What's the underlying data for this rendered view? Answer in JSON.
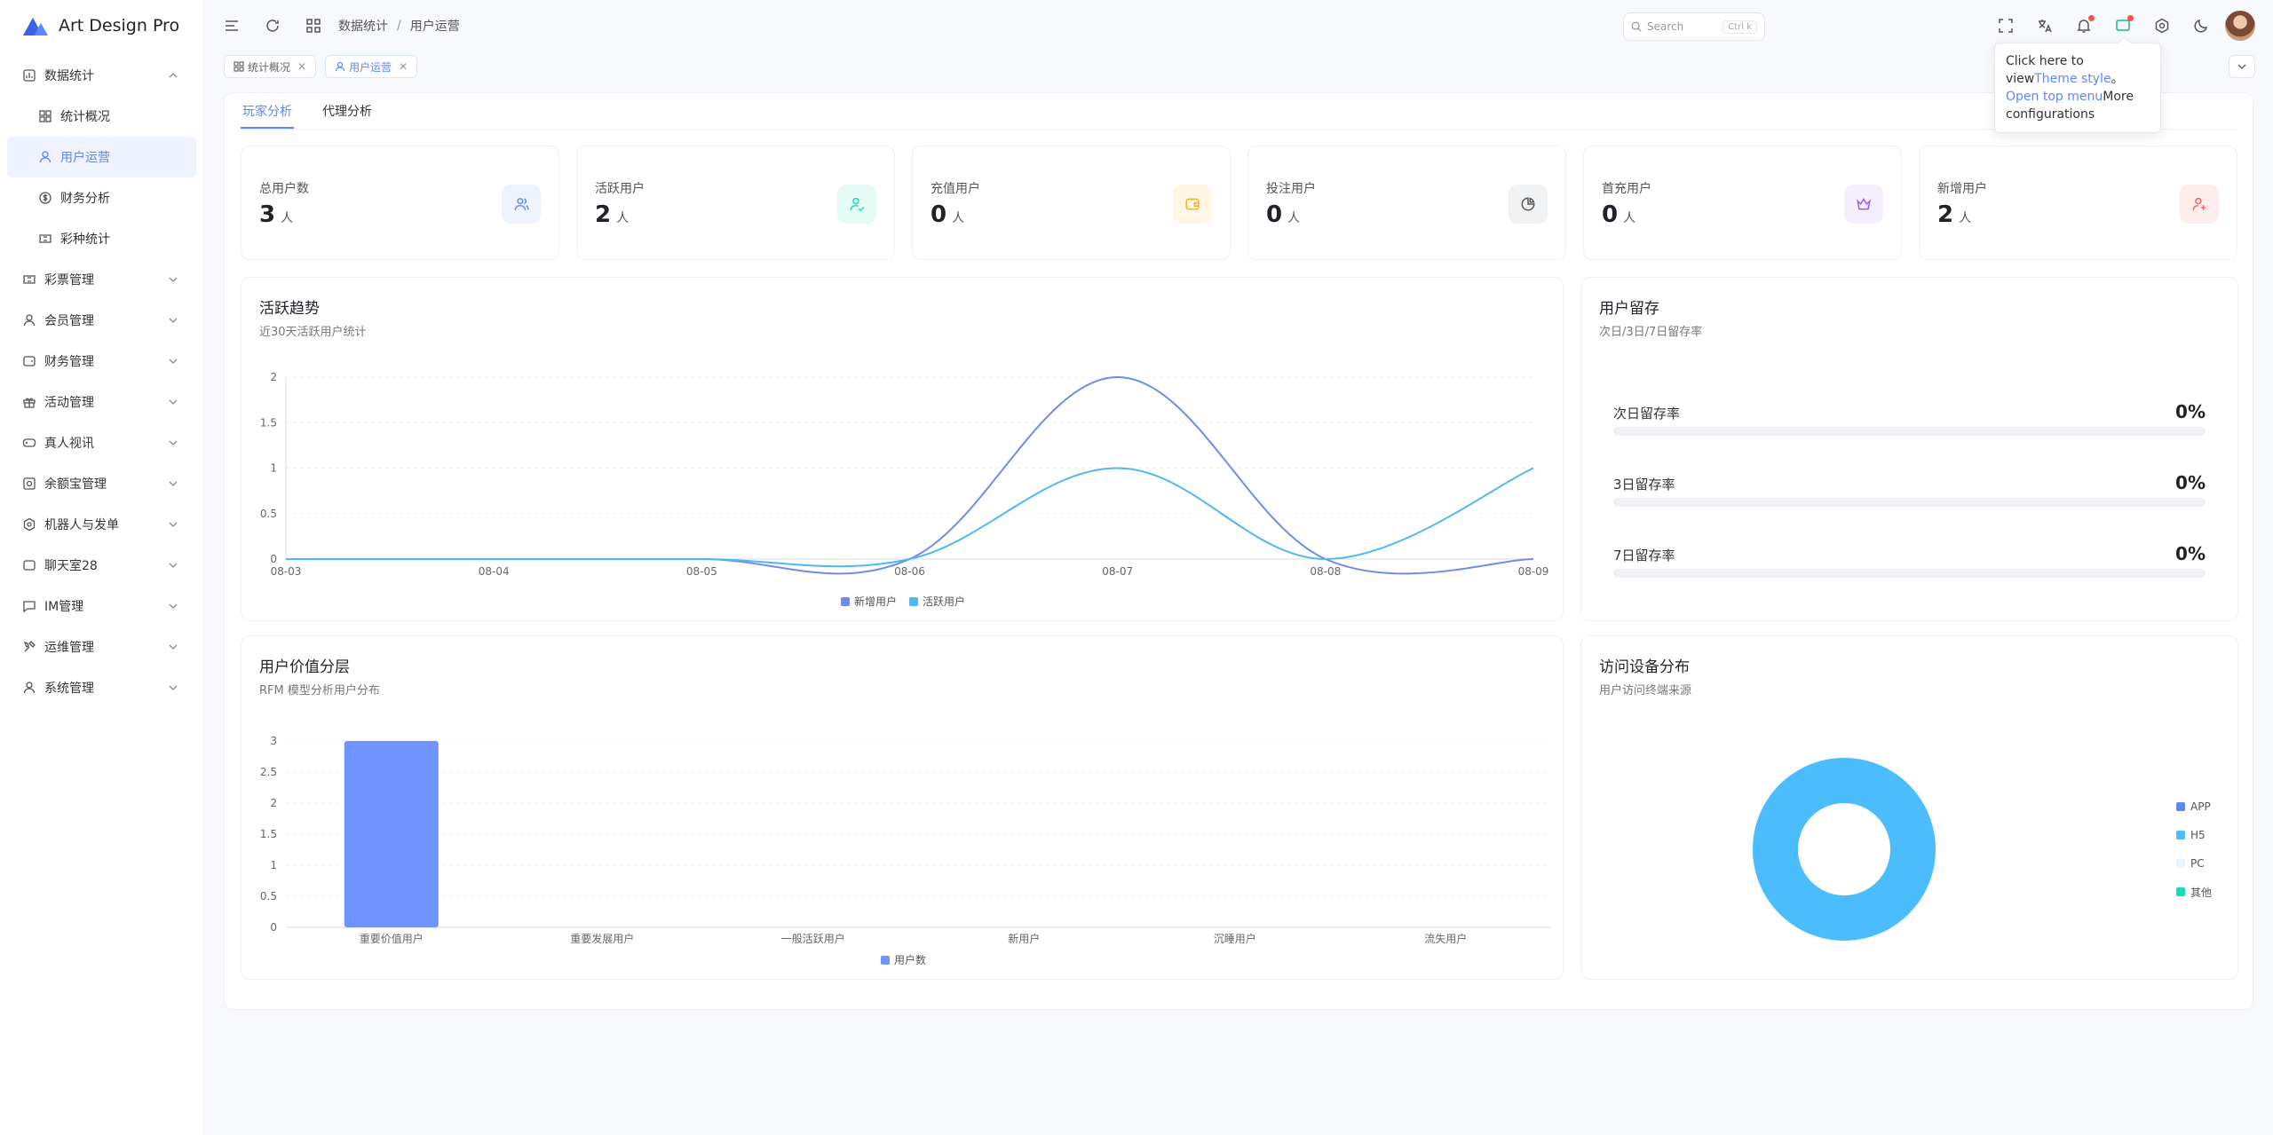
{
  "app": {
    "title": "Art Design Pro"
  },
  "sidebar": {
    "items": [
      {
        "label": "数据统计",
        "icon": "chart-icon",
        "expanded": true
      },
      {
        "label": "统计概况",
        "icon": "dashboard-icon",
        "sub": true
      },
      {
        "label": "用户运营",
        "icon": "user-icon",
        "sub": true,
        "active": true
      },
      {
        "label": "财务分析",
        "icon": "dollar-icon",
        "sub": true
      },
      {
        "label": "彩种统计",
        "icon": "ticket-icon",
        "sub": true
      },
      {
        "label": "彩票管理",
        "icon": "ticket-icon"
      },
      {
        "label": "会员管理",
        "icon": "user-icon"
      },
      {
        "label": "财务管理",
        "icon": "wallet-icon"
      },
      {
        "label": "活动管理",
        "icon": "gift-icon"
      },
      {
        "label": "真人视讯",
        "icon": "gamepad-icon"
      },
      {
        "label": "余额宝管理",
        "icon": "safe-icon"
      },
      {
        "label": "机器人与发单",
        "icon": "robot-icon"
      },
      {
        "label": "聊天室28",
        "icon": "chat-icon"
      },
      {
        "label": "IM管理",
        "icon": "message-icon"
      },
      {
        "label": "运维管理",
        "icon": "tools-icon"
      },
      {
        "label": "系统管理",
        "icon": "user-icon"
      }
    ]
  },
  "header": {
    "breadcrumb": [
      "数据统计",
      "用户运营"
    ],
    "search_placeholder": "Search",
    "search_kbd": "Ctrl k"
  },
  "tabs": [
    {
      "label": "统计概况",
      "active": false
    },
    {
      "label": "用户运营",
      "active": true
    }
  ],
  "tooltip": {
    "t1": "Click here to view",
    "l1": "Theme style",
    "t2": "。 ",
    "l2": "Open top menu",
    "t3": "More configurations"
  },
  "page_tabs": [
    {
      "label": "玩家分析",
      "active": true
    },
    {
      "label": "代理分析",
      "active": false
    }
  ],
  "stats": [
    {
      "label": "总用户数",
      "value": "3",
      "unit": "人",
      "icon": "users-icon",
      "color": "#5d87ff",
      "bg": "#eef3ff"
    },
    {
      "label": "活跃用户",
      "value": "2",
      "unit": "人",
      "icon": "user-check-icon",
      "color": "#13deb9",
      "bg": "#e6fbf5"
    },
    {
      "label": "充值用户",
      "value": "0",
      "unit": "人",
      "icon": "wallet-icon",
      "color": "#ffae1f",
      "bg": "#fff6e6"
    },
    {
      "label": "投注用户",
      "value": "0",
      "unit": "人",
      "icon": "pie-icon",
      "color": "#555555",
      "bg": "#f1f2f4"
    },
    {
      "label": "首充用户",
      "value": "0",
      "unit": "人",
      "icon": "crown-icon",
      "color": "#9c5cf7",
      "bg": "#f4eefe"
    },
    {
      "label": "新增用户",
      "value": "2",
      "unit": "人",
      "icon": "user-plus-icon",
      "color": "#fa5e5e",
      "bg": "#feeded"
    }
  ],
  "trend": {
    "title": "活跃趋势",
    "subtitle": "近30天活跃用户统计"
  },
  "retention": {
    "title": "用户留存",
    "subtitle": "次日/3日/7日留存率",
    "rows": [
      {
        "label": "次日留存率",
        "value": "0%",
        "fraction": 0
      },
      {
        "label": "3日留存率",
        "value": "0%",
        "fraction": 0
      },
      {
        "label": "7日留存率",
        "value": "0%",
        "fraction": 0
      }
    ]
  },
  "value_layer": {
    "title": "用户价值分层",
    "subtitle": "RFM 模型分析用户分布"
  },
  "device": {
    "title": "访问设备分布",
    "subtitle": "用户访问终端来源"
  },
  "chart_data": [
    {
      "type": "line",
      "x": [
        "08-03",
        "08-04",
        "08-05",
        "08-06",
        "08-07",
        "08-08",
        "08-09"
      ],
      "ylim": [
        0,
        2
      ],
      "yticks": [
        "0",
        "0.5",
        "1",
        "1.5",
        "2"
      ],
      "smooth": true,
      "grid": true,
      "legend": "bottom",
      "series": [
        {
          "name": "新增用户",
          "color": "#6f8bec",
          "values": [
            0,
            0,
            0,
            0,
            2,
            0,
            0
          ]
        },
        {
          "name": "活跃用户",
          "color": "#4cb8f5",
          "values": [
            0,
            0,
            0,
            0,
            1,
            0,
            1
          ]
        }
      ]
    },
    {
      "type": "bar",
      "categories": [
        "重要价值用户",
        "重要发展用户",
        "一般活跃用户",
        "新用户",
        "沉睡用户",
        "流失用户"
      ],
      "ylim": [
        0,
        3
      ],
      "yticks": [
        "0",
        "0.5",
        "1",
        "1.5",
        "2",
        "2.5",
        "3"
      ],
      "grid": true,
      "legend": "bottom",
      "series": [
        {
          "name": "用户数",
          "color": "#6f93ff",
          "values": [
            3,
            0,
            0,
            0,
            0,
            0
          ]
        }
      ]
    },
    {
      "type": "pie",
      "donut": true,
      "legend": "right",
      "labels": [
        "APP",
        "H5",
        "PC",
        "其他"
      ],
      "colors": [
        "#5d87ff",
        "#4cbdfc",
        "#e8f4fd",
        "#13deb9"
      ],
      "values": [
        0,
        1,
        0,
        0
      ]
    }
  ]
}
